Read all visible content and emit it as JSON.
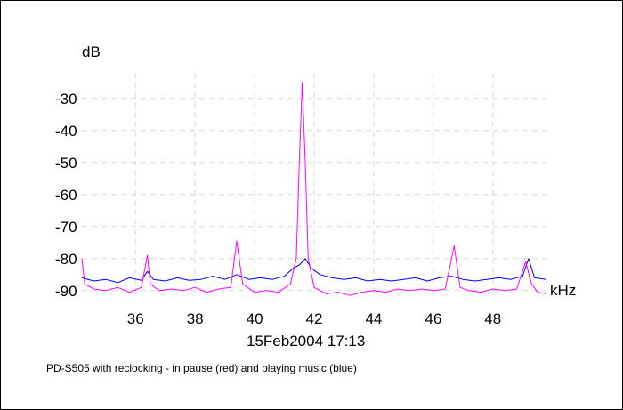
{
  "chart_data": {
    "type": "line",
    "title": "",
    "xlabel": "kHz",
    "ylabel": "dB",
    "timestamp": "15Feb2004  17:13",
    "caption": "PD-S505 with reclocking - in pause (red) and playing music (blue)",
    "xlim": [
      34.2,
      49.8
    ],
    "ylim": [
      -92,
      -22
    ],
    "x_ticks": [
      36,
      38,
      40,
      42,
      44,
      46,
      48
    ],
    "y_ticks": [
      -30,
      -40,
      -50,
      -60,
      -70,
      -80,
      -90
    ],
    "grid": true,
    "colors": {
      "pause": "#ff00ff",
      "playing": "#0000ff"
    },
    "series": [
      {
        "key": "playing",
        "points": [
          [
            34.2,
            -86
          ],
          [
            34.6,
            -87
          ],
          [
            35.0,
            -86.5
          ],
          [
            35.4,
            -87.5
          ],
          [
            35.8,
            -86
          ],
          [
            36.2,
            -86.8
          ],
          [
            36.4,
            -84
          ],
          [
            36.6,
            -86.5
          ],
          [
            37.0,
            -87
          ],
          [
            37.4,
            -86
          ],
          [
            37.8,
            -86.8
          ],
          [
            38.2,
            -86.5
          ],
          [
            38.6,
            -85.5
          ],
          [
            39.0,
            -86.5
          ],
          [
            39.4,
            -85
          ],
          [
            39.8,
            -86.5
          ],
          [
            40.2,
            -86
          ],
          [
            40.6,
            -86.5
          ],
          [
            41.0,
            -85.5
          ],
          [
            41.3,
            -83
          ],
          [
            41.5,
            -82
          ],
          [
            41.7,
            -80
          ],
          [
            41.9,
            -83
          ],
          [
            42.2,
            -85
          ],
          [
            42.6,
            -86
          ],
          [
            43.0,
            -86.5
          ],
          [
            43.4,
            -86
          ],
          [
            43.8,
            -87
          ],
          [
            44.2,
            -86.5
          ],
          [
            44.6,
            -87
          ],
          [
            45.0,
            -86.5
          ],
          [
            45.4,
            -86
          ],
          [
            45.8,
            -87
          ],
          [
            46.2,
            -86
          ],
          [
            46.6,
            -85.5
          ],
          [
            47.0,
            -86.5
          ],
          [
            47.4,
            -87
          ],
          [
            47.8,
            -86.5
          ],
          [
            48.2,
            -86
          ],
          [
            48.6,
            -86.5
          ],
          [
            49.0,
            -85.5
          ],
          [
            49.2,
            -80
          ],
          [
            49.4,
            -86
          ],
          [
            49.8,
            -86.5
          ]
        ]
      },
      {
        "key": "pause",
        "points": [
          [
            34.2,
            -80
          ],
          [
            34.3,
            -88
          ],
          [
            34.6,
            -89.5
          ],
          [
            35.0,
            -90
          ],
          [
            35.4,
            -89
          ],
          [
            35.8,
            -90.5
          ],
          [
            36.2,
            -89
          ],
          [
            36.4,
            -79
          ],
          [
            36.5,
            -88
          ],
          [
            36.8,
            -90
          ],
          [
            37.2,
            -89.5
          ],
          [
            37.6,
            -90
          ],
          [
            38.0,
            -89
          ],
          [
            38.4,
            -90.5
          ],
          [
            38.8,
            -89.5
          ],
          [
            39.2,
            -89
          ],
          [
            39.4,
            -74.5
          ],
          [
            39.6,
            -88
          ],
          [
            40.0,
            -90.5
          ],
          [
            40.4,
            -90
          ],
          [
            40.8,
            -90.5
          ],
          [
            41.2,
            -88
          ],
          [
            41.4,
            -80
          ],
          [
            41.5,
            -50
          ],
          [
            41.6,
            -25
          ],
          [
            41.7,
            -50
          ],
          [
            41.8,
            -80
          ],
          [
            42.0,
            -89
          ],
          [
            42.4,
            -91
          ],
          [
            42.8,
            -90.5
          ],
          [
            43.2,
            -91.5
          ],
          [
            43.6,
            -90.5
          ],
          [
            44.0,
            -90
          ],
          [
            44.4,
            -90.5
          ],
          [
            44.8,
            -89.5
          ],
          [
            45.2,
            -90
          ],
          [
            45.6,
            -89.5
          ],
          [
            46.0,
            -90
          ],
          [
            46.4,
            -89.5
          ],
          [
            46.7,
            -76
          ],
          [
            46.9,
            -89
          ],
          [
            47.2,
            -90
          ],
          [
            47.6,
            -90.5
          ],
          [
            48.0,
            -89.5
          ],
          [
            48.4,
            -90
          ],
          [
            48.8,
            -89.5
          ],
          [
            49.1,
            -81
          ],
          [
            49.3,
            -88
          ],
          [
            49.5,
            -90.5
          ],
          [
            49.8,
            -91
          ]
        ]
      }
    ]
  }
}
